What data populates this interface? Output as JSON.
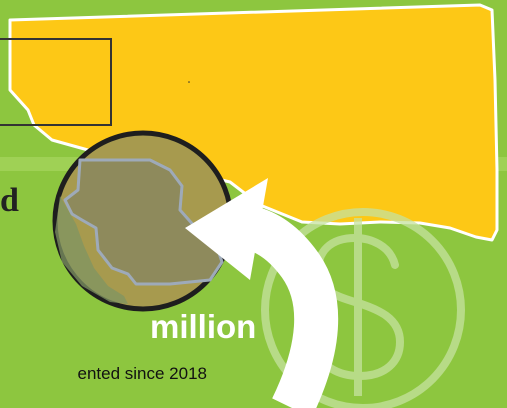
{
  "headline": {
    "cut_off_word": "d",
    "amount": "million",
    "subtext": "ented since 2018"
  },
  "icons": {
    "map": "montana-state-map-icon",
    "magnifier": "magnifier-circle-icon",
    "arrow": "curved-arrow-icon",
    "currency": "dollar-sign-icon"
  },
  "colors": {
    "background": "#8dc63f",
    "map_fill": "#fdc816",
    "lens_fill": "#a79a4e",
    "arrow": "#ffffff",
    "dollar": "#b5da7e"
  }
}
